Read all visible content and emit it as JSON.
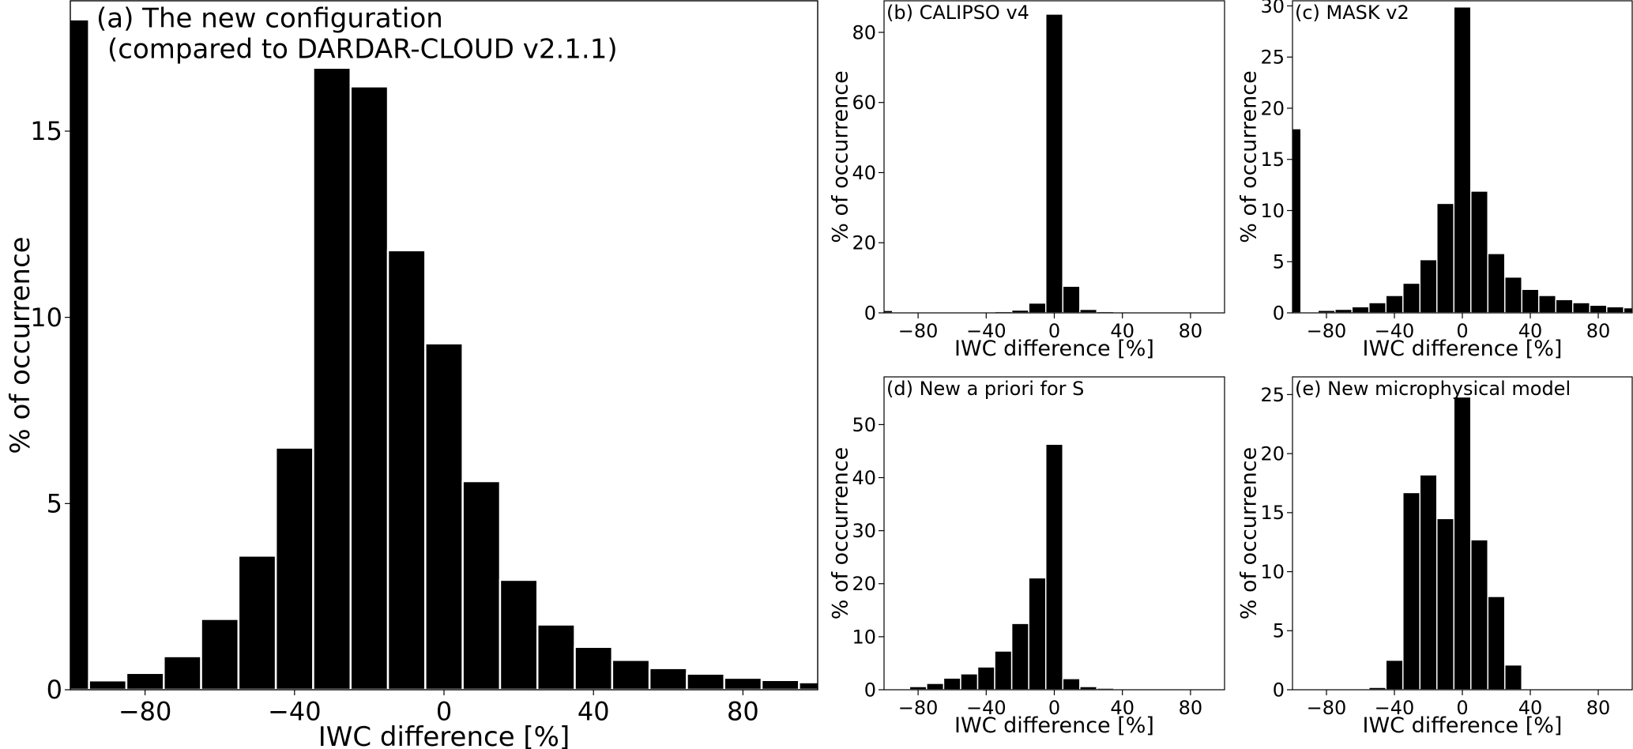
{
  "chart_data": [
    {
      "id": "a",
      "type": "bar",
      "title": "(a) The new configuration",
      "subtitle": "(compared to DARDAR-CLOUD v2.1.1)",
      "xlabel": "IWC difference [%]",
      "ylabel": "% of occurrence",
      "xlim": [
        -100,
        100
      ],
      "ylim": [
        0,
        18.5
      ],
      "xticks": [
        -80,
        -40,
        0,
        40,
        80
      ],
      "yticks": [
        0,
        5,
        10,
        15
      ],
      "grid": false,
      "bin_width": 10,
      "bins": [
        {
          "x": -100,
          "y": 18.0
        },
        {
          "x": -90,
          "y": 0.25
        },
        {
          "x": -80,
          "y": 0.45
        },
        {
          "x": -70,
          "y": 0.9
        },
        {
          "x": -60,
          "y": 1.9
        },
        {
          "x": -50,
          "y": 3.6
        },
        {
          "x": -40,
          "y": 6.5
        },
        {
          "x": -30,
          "y": 16.7
        },
        {
          "x": -20,
          "y": 16.2
        },
        {
          "x": -10,
          "y": 11.8
        },
        {
          "x": 0,
          "y": 9.3
        },
        {
          "x": 10,
          "y": 5.6
        },
        {
          "x": 20,
          "y": 2.95
        },
        {
          "x": 30,
          "y": 1.75
        },
        {
          "x": 40,
          "y": 1.15
        },
        {
          "x": 50,
          "y": 0.8
        },
        {
          "x": 60,
          "y": 0.58
        },
        {
          "x": 70,
          "y": 0.43
        },
        {
          "x": 80,
          "y": 0.32
        },
        {
          "x": 90,
          "y": 0.26
        },
        {
          "x": 100,
          "y": 0.2
        }
      ]
    },
    {
      "id": "b",
      "type": "bar",
      "title": "(b) CALIPSO v4",
      "xlabel": "IWC difference [%]",
      "ylabel": "% of occurrence",
      "xlim": [
        -100,
        100
      ],
      "ylim": [
        0,
        89
      ],
      "xticks": [
        -80,
        -40,
        0,
        40,
        80
      ],
      "yticks": [
        0,
        20,
        40,
        60,
        80
      ],
      "grid": false,
      "bin_width": 10,
      "bins": [
        {
          "x": -100,
          "y": 0.7
        },
        {
          "x": -90,
          "y": 0.05
        },
        {
          "x": -80,
          "y": 0.05
        },
        {
          "x": -70,
          "y": 0.05
        },
        {
          "x": -60,
          "y": 0.1
        },
        {
          "x": -50,
          "y": 0.15
        },
        {
          "x": -40,
          "y": 0.25
        },
        {
          "x": -30,
          "y": 0.4
        },
        {
          "x": -20,
          "y": 0.8
        },
        {
          "x": -10,
          "y": 2.8
        },
        {
          "x": 0,
          "y": 85.2
        },
        {
          "x": 10,
          "y": 7.6
        },
        {
          "x": 20,
          "y": 1.0
        },
        {
          "x": 30,
          "y": 0.4
        },
        {
          "x": 40,
          "y": 0.25
        },
        {
          "x": 50,
          "y": 0.15
        },
        {
          "x": 60,
          "y": 0.1
        },
        {
          "x": 70,
          "y": 0.1
        },
        {
          "x": 80,
          "y": 0.05
        },
        {
          "x": 90,
          "y": 0.05
        }
      ]
    },
    {
      "id": "c",
      "type": "bar",
      "title": "(c) MASK v2",
      "xlabel": "IWC difference [%]",
      "ylabel": "% of occurrence",
      "xlim": [
        -100,
        100
      ],
      "ylim": [
        0,
        30.5
      ],
      "xticks": [
        -80,
        -40,
        0,
        40,
        80
      ],
      "yticks": [
        0,
        5,
        10,
        15,
        20,
        25,
        30
      ],
      "grid": false,
      "bin_width": 10,
      "bins": [
        {
          "x": -100,
          "y": 18.0
        },
        {
          "x": -90,
          "y": 0.1
        },
        {
          "x": -80,
          "y": 0.25
        },
        {
          "x": -70,
          "y": 0.35
        },
        {
          "x": -60,
          "y": 0.6
        },
        {
          "x": -50,
          "y": 1.0
        },
        {
          "x": -40,
          "y": 1.7
        },
        {
          "x": -30,
          "y": 2.9
        },
        {
          "x": -20,
          "y": 5.2
        },
        {
          "x": -10,
          "y": 10.7
        },
        {
          "x": 0,
          "y": 29.9
        },
        {
          "x": 10,
          "y": 11.9
        },
        {
          "x": 20,
          "y": 5.8
        },
        {
          "x": 30,
          "y": 3.5
        },
        {
          "x": 40,
          "y": 2.3
        },
        {
          "x": 50,
          "y": 1.7
        },
        {
          "x": 60,
          "y": 1.3
        },
        {
          "x": 70,
          "y": 1.0
        },
        {
          "x": 80,
          "y": 0.75
        },
        {
          "x": 90,
          "y": 0.6
        },
        {
          "x": 100,
          "y": 0.5
        }
      ]
    },
    {
      "id": "d",
      "type": "bar",
      "title": "(d) New a priori for S",
      "xlabel": "IWC difference [%]",
      "ylabel": "% of occurrence",
      "xlim": [
        -100,
        100
      ],
      "ylim": [
        0,
        59
      ],
      "xticks": [
        -80,
        -40,
        0,
        40,
        80
      ],
      "yticks": [
        0,
        10,
        20,
        30,
        40,
        50
      ],
      "grid": false,
      "bin_width": 10,
      "bins": [
        {
          "x": -90,
          "y": 0.2
        },
        {
          "x": -80,
          "y": 0.6
        },
        {
          "x": -70,
          "y": 1.2
        },
        {
          "x": -60,
          "y": 2.2
        },
        {
          "x": -50,
          "y": 3.0
        },
        {
          "x": -40,
          "y": 4.3
        },
        {
          "x": -30,
          "y": 7.3
        },
        {
          "x": -20,
          "y": 12.5
        },
        {
          "x": -10,
          "y": 21.1
        },
        {
          "x": 0,
          "y": 46.3
        },
        {
          "x": 10,
          "y": 2.1
        },
        {
          "x": 20,
          "y": 0.6
        },
        {
          "x": 30,
          "y": 0.3
        },
        {
          "x": 40,
          "y": 0.2
        },
        {
          "x": 50,
          "y": 0.1
        },
        {
          "x": 60,
          "y": 0.1
        },
        {
          "x": 70,
          "y": 0.05
        },
        {
          "x": 80,
          "y": 0.05
        },
        {
          "x": 90,
          "y": 0.05
        }
      ]
    },
    {
      "id": "e",
      "type": "bar",
      "title": "(e) New microphysical model",
      "xlabel": "IWC difference [%]",
      "ylabel": "% of occurrence",
      "xlim": [
        -100,
        100
      ],
      "ylim": [
        0,
        26.5
      ],
      "xticks": [
        -80,
        -40,
        0,
        40,
        80
      ],
      "yticks": [
        0,
        5,
        10,
        15,
        20,
        25
      ],
      "grid": false,
      "bin_width": 10,
      "bins": [
        {
          "x": -90,
          "y": 0.05
        },
        {
          "x": -80,
          "y": 0.05
        },
        {
          "x": -70,
          "y": 0.05
        },
        {
          "x": -60,
          "y": 0.1
        },
        {
          "x": -50,
          "y": 0.2
        },
        {
          "x": -40,
          "y": 2.5
        },
        {
          "x": -30,
          "y": 16.7
        },
        {
          "x": -20,
          "y": 18.2
        },
        {
          "x": -10,
          "y": 14.5
        },
        {
          "x": 0,
          "y": 24.8
        },
        {
          "x": 10,
          "y": 12.7
        },
        {
          "x": 20,
          "y": 7.9
        },
        {
          "x": 30,
          "y": 2.1
        },
        {
          "x": 40,
          "y": 0.1
        },
        {
          "x": 50,
          "y": 0.05
        },
        {
          "x": 60,
          "y": 0.05
        },
        {
          "x": 70,
          "y": 0.05
        },
        {
          "x": 80,
          "y": 0.05
        },
        {
          "x": 90,
          "y": 0.05
        }
      ]
    }
  ],
  "colors": {
    "bar": "#000000",
    "bar_edge": "#ffffff",
    "axis": "#000000",
    "background": "#ffffff"
  }
}
